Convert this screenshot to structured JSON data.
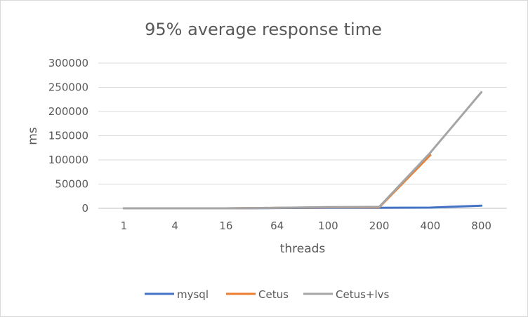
{
  "chart_data": {
    "type": "line",
    "title": "95% average response time",
    "xlabel": "threads",
    "ylabel": "ms",
    "categories": [
      "1",
      "4",
      "16",
      "64",
      "100",
      "200",
      "400",
      "800"
    ],
    "ylim": [
      0,
      300000
    ],
    "yticks": [
      "0",
      "50000",
      "100000",
      "150000",
      "200000",
      "250000",
      "300000"
    ],
    "grid": true,
    "legend_position": "bottom",
    "series": [
      {
        "name": "mysql",
        "color": "#4472c4",
        "values": [
          0,
          0,
          0,
          500,
          1000,
          1000,
          1500,
          5500
        ]
      },
      {
        "name": "Cetus",
        "color": "#ed7d31",
        "values": [
          0,
          0,
          0,
          1000,
          2000,
          2000,
          110000,
          null
        ]
      },
      {
        "name": "Cetus+lvs",
        "color": "#a5a5a5",
        "values": [
          0,
          0,
          0,
          1000,
          2500,
          3000,
          115000,
          240000
        ]
      }
    ]
  }
}
